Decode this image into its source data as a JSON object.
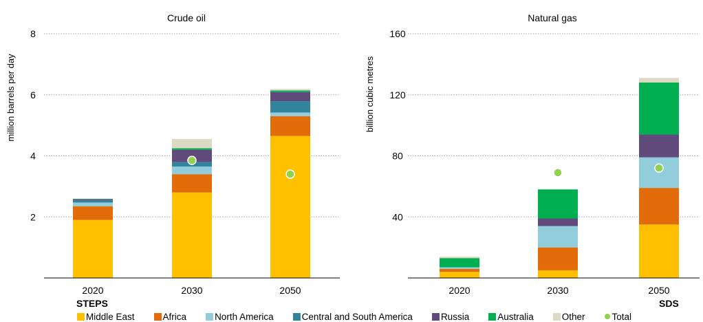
{
  "chart_data": [
    {
      "type": "bar",
      "stacked": true,
      "title": "Crude oil",
      "ylabel": "million barrels per day",
      "xlabel": "",
      "ylim": [
        0,
        8
      ],
      "yticks": [
        2,
        4,
        6,
        8
      ],
      "categories": [
        "2020",
        "2030",
        "2050"
      ],
      "series": [
        {
          "name": "Middle East",
          "color": "#FFC000",
          "values": [
            1.9,
            2.8,
            4.65
          ]
        },
        {
          "name": "Africa",
          "color": "#E36C0A",
          "values": [
            0.45,
            0.6,
            0.65
          ]
        },
        {
          "name": "North America",
          "color": "#92CDDC",
          "values": [
            0.12,
            0.25,
            0.12
          ]
        },
        {
          "name": "Central and South America",
          "color": "#31849B",
          "values": [
            0.08,
            0.15,
            0.37
          ]
        },
        {
          "name": "Russia",
          "color": "#604A7B",
          "values": [
            0.03,
            0.4,
            0.3
          ]
        },
        {
          "name": "Australia",
          "color": "#00B050",
          "values": [
            0.01,
            0.05,
            0.05
          ]
        },
        {
          "name": "Other",
          "color": "#DDD9C3",
          "values": [
            0.01,
            0.3,
            0.05
          ]
        }
      ],
      "total_sds": [
        null,
        3.85,
        3.4
      ]
    },
    {
      "type": "bar",
      "stacked": true,
      "title": "Natural gas",
      "ylabel": "billion cubic metres",
      "xlabel": "",
      "ylim": [
        0,
        160
      ],
      "yticks": [
        40,
        80,
        120,
        160
      ],
      "categories": [
        "2020",
        "2030",
        "2050"
      ],
      "series": [
        {
          "name": "Middle East",
          "color": "#FFC000",
          "values": [
            4,
            5,
            35
          ]
        },
        {
          "name": "Africa",
          "color": "#E36C0A",
          "values": [
            2,
            15,
            24
          ]
        },
        {
          "name": "North America",
          "color": "#92CDDC",
          "values": [
            1,
            14,
            20
          ]
        },
        {
          "name": "Central and South America",
          "color": "#31849B",
          "values": [
            0,
            0,
            0
          ]
        },
        {
          "name": "Russia",
          "color": "#604A7B",
          "values": [
            0,
            5,
            15
          ]
        },
        {
          "name": "Australia",
          "color": "#00B050",
          "values": [
            6,
            19,
            34
          ]
        },
        {
          "name": "Other",
          "color": "#DDD9C3",
          "values": [
            1,
            0,
            3
          ]
        }
      ],
      "total_sds": [
        null,
        69,
        72
      ]
    }
  ],
  "labels": {
    "steps": "STEPS",
    "sds": "SDS",
    "total": "Total"
  },
  "colors": {
    "total_dot": "#92D050",
    "grid": "#a6a6a6",
    "axis": "#000000"
  }
}
